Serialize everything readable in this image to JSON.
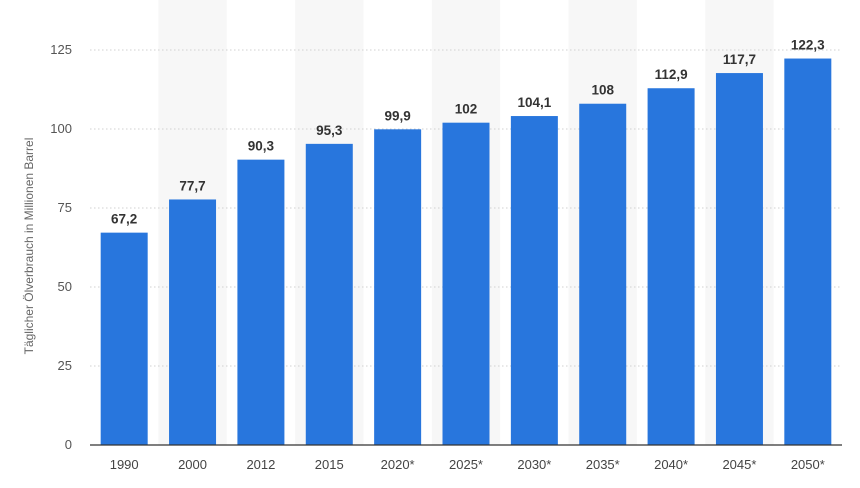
{
  "chart_data": {
    "type": "bar",
    "ylabel": "Täglicher Ölverbrauch in Millionen Barrel",
    "categories": [
      "1990",
      "2000",
      "2012",
      "2015",
      "2020*",
      "2025*",
      "2030*",
      "2035*",
      "2040*",
      "2045*",
      "2050*"
    ],
    "values": [
      67.2,
      77.7,
      90.3,
      95.3,
      99.9,
      102,
      104.1,
      108,
      112.9,
      117.7,
      122.3
    ],
    "value_labels": [
      "67,2",
      "77,7",
      "90,3",
      "95,3",
      "99,9",
      "102",
      "104,1",
      "108",
      "112,9",
      "117,7",
      "122,3"
    ],
    "ylim": [
      0,
      125
    ],
    "yticks": [
      "0",
      "25",
      "50",
      "75",
      "100",
      "125"
    ],
    "grid": true,
    "bar_color": "#2876dd",
    "band_color": "#f7f7f7"
  }
}
